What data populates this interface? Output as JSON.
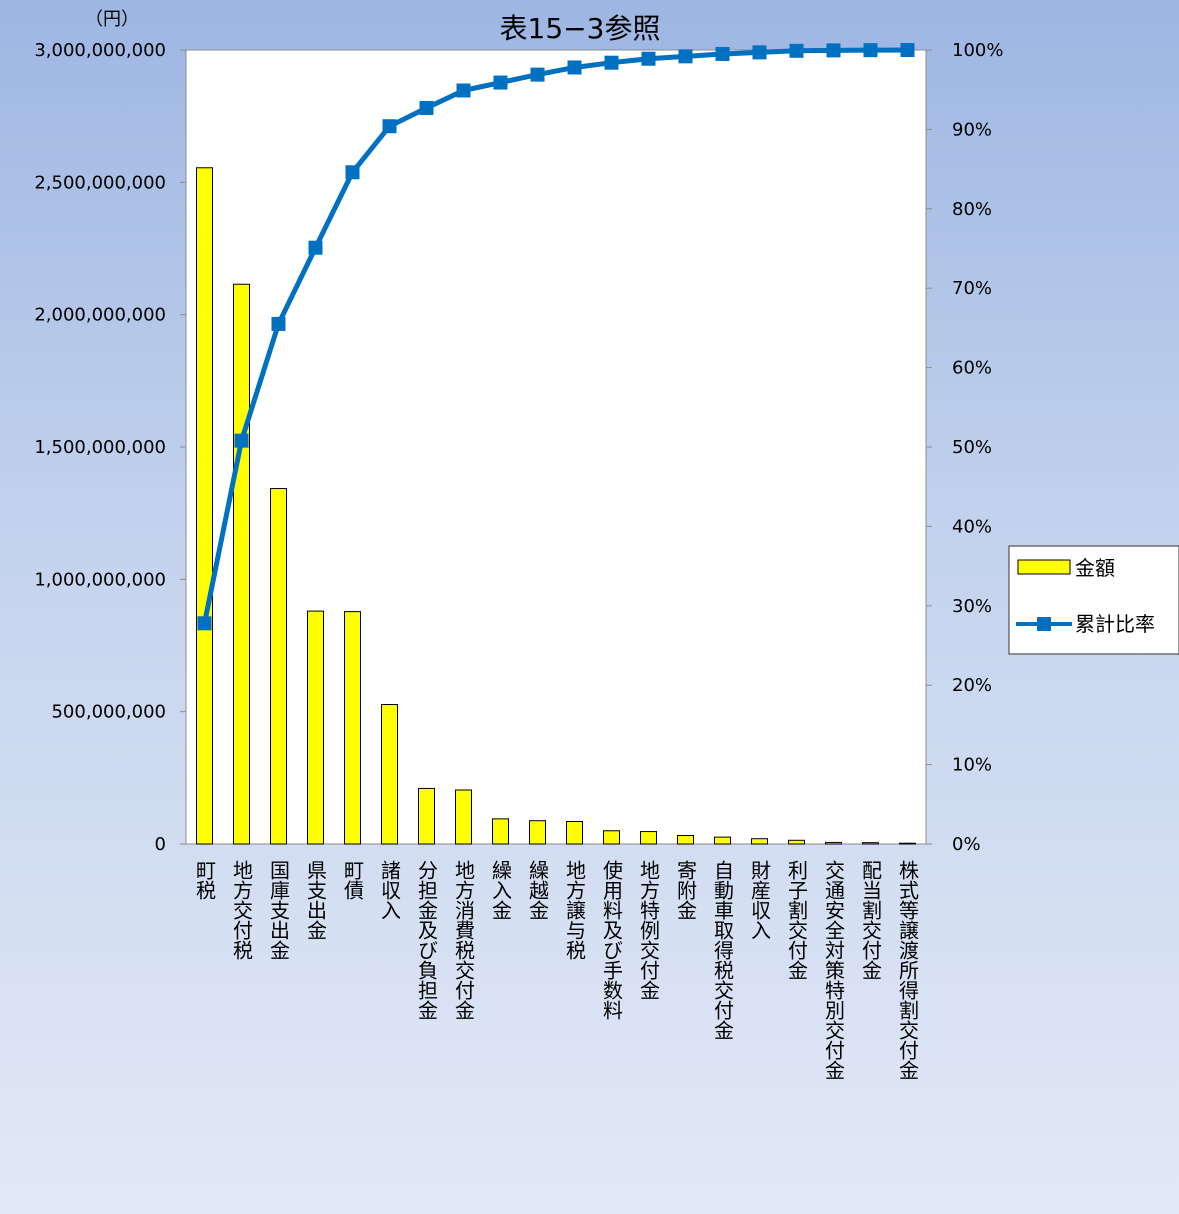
{
  "chart_data": {
    "type": "bar",
    "title": "表15−3参照",
    "y_unit": "（円）",
    "categories": [
      "町税",
      "地方交付税",
      "国庫支出金",
      "県支出金",
      "町債",
      "諸収入",
      "分担金及び負担金",
      "地方消費税交付金",
      "繰入金",
      "繰越金",
      "地方譲与税",
      "使用料及び手数料",
      "地方特例交付金",
      "寄附金",
      "自動車取得税交付金",
      "財産収入",
      "利子割交付金",
      "交通安全対策特別交付金",
      "配当割交付金",
      "株式等譲渡所得割交付金"
    ],
    "series": [
      {
        "name": "金額",
        "type": "bar",
        "color": "#ffff00",
        "values": [
          2555000000,
          2115000000,
          1343000000,
          880000000,
          878000000,
          527000000,
          210000000,
          204000000,
          95000000,
          88000000,
          85000000,
          50000000,
          47000000,
          32000000,
          26000000,
          20000000,
          14000000,
          6000000,
          5000000,
          3000000
        ]
      },
      {
        "name": "累計比率",
        "type": "line",
        "color": "#0070c0",
        "axis": "right",
        "values": [
          27.8,
          50.8,
          65.5,
          75.1,
          84.6,
          90.4,
          92.7,
          94.9,
          95.9,
          96.9,
          97.8,
          98.4,
          98.9,
          99.2,
          99.5,
          99.7,
          99.9,
          99.95,
          99.98,
          100.0
        ]
      }
    ],
    "left_axis": {
      "min": 0,
      "max": 3000000000,
      "ticks": [
        "0",
        "500,000,000",
        "1,000,000,000",
        "1,500,000,000",
        "2,000,000,000",
        "2,500,000,000",
        "3,000,000,000"
      ]
    },
    "right_axis": {
      "min": 0,
      "max": 100,
      "ticks": [
        "0%",
        "10%",
        "20%",
        "30%",
        "40%",
        "50%",
        "60%",
        "70%",
        "80%",
        "90%",
        "100%"
      ]
    },
    "legend_position": "right"
  }
}
